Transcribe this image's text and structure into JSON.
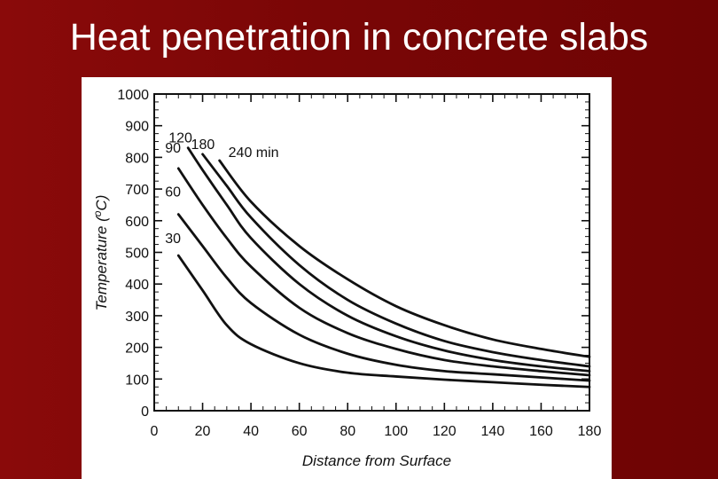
{
  "slide": {
    "title": "Heat penetration in concrete slabs"
  },
  "chart_data": {
    "type": "line",
    "title": "",
    "xlabel": "Distance from Surface",
    "ylabel": "Temperature (oC)",
    "xlim": [
      0,
      180
    ],
    "ylim": [
      0,
      1000
    ],
    "xticks": [
      0,
      20,
      40,
      60,
      80,
      100,
      120,
      140,
      160,
      180
    ],
    "yticks": [
      0,
      100,
      200,
      300,
      400,
      500,
      600,
      700,
      800,
      900,
      1000
    ],
    "grid": false,
    "series": [
      {
        "name": "30",
        "label": "30",
        "x": [
          10,
          20,
          30,
          40,
          60,
          80,
          100,
          120,
          140,
          160,
          180
        ],
        "y": [
          490,
          380,
          270,
          210,
          150,
          120,
          108,
          98,
          90,
          82,
          75
        ]
      },
      {
        "name": "60",
        "label": "60",
        "x": [
          10,
          20,
          30,
          40,
          60,
          80,
          100,
          120,
          140,
          160,
          180
        ],
        "y": [
          620,
          520,
          420,
          340,
          240,
          180,
          145,
          125,
          115,
          105,
          95
        ]
      },
      {
        "name": "90",
        "label": "90",
        "x": [
          10,
          20,
          30,
          40,
          60,
          80,
          100,
          120,
          140,
          160,
          180
        ],
        "y": [
          765,
          650,
          545,
          455,
          325,
          245,
          195,
          160,
          140,
          125,
          112
        ]
      },
      {
        "name": "120",
        "label": "120",
        "x": [
          14,
          20,
          30,
          40,
          60,
          80,
          100,
          120,
          140,
          160,
          180
        ],
        "y": [
          830,
          760,
          650,
          545,
          400,
          300,
          235,
          190,
          160,
          140,
          125
        ]
      },
      {
        "name": "180",
        "label": "180",
        "x": [
          20,
          30,
          40,
          60,
          80,
          100,
          120,
          140,
          160,
          180
        ],
        "y": [
          810,
          710,
          610,
          460,
          350,
          275,
          220,
          185,
          160,
          140
        ]
      },
      {
        "name": "240",
        "label": "240 min",
        "x": [
          27,
          40,
          60,
          80,
          100,
          120,
          140,
          160,
          180
        ],
        "y": [
          790,
          660,
          520,
          415,
          330,
          270,
          225,
          195,
          170
        ]
      }
    ]
  }
}
